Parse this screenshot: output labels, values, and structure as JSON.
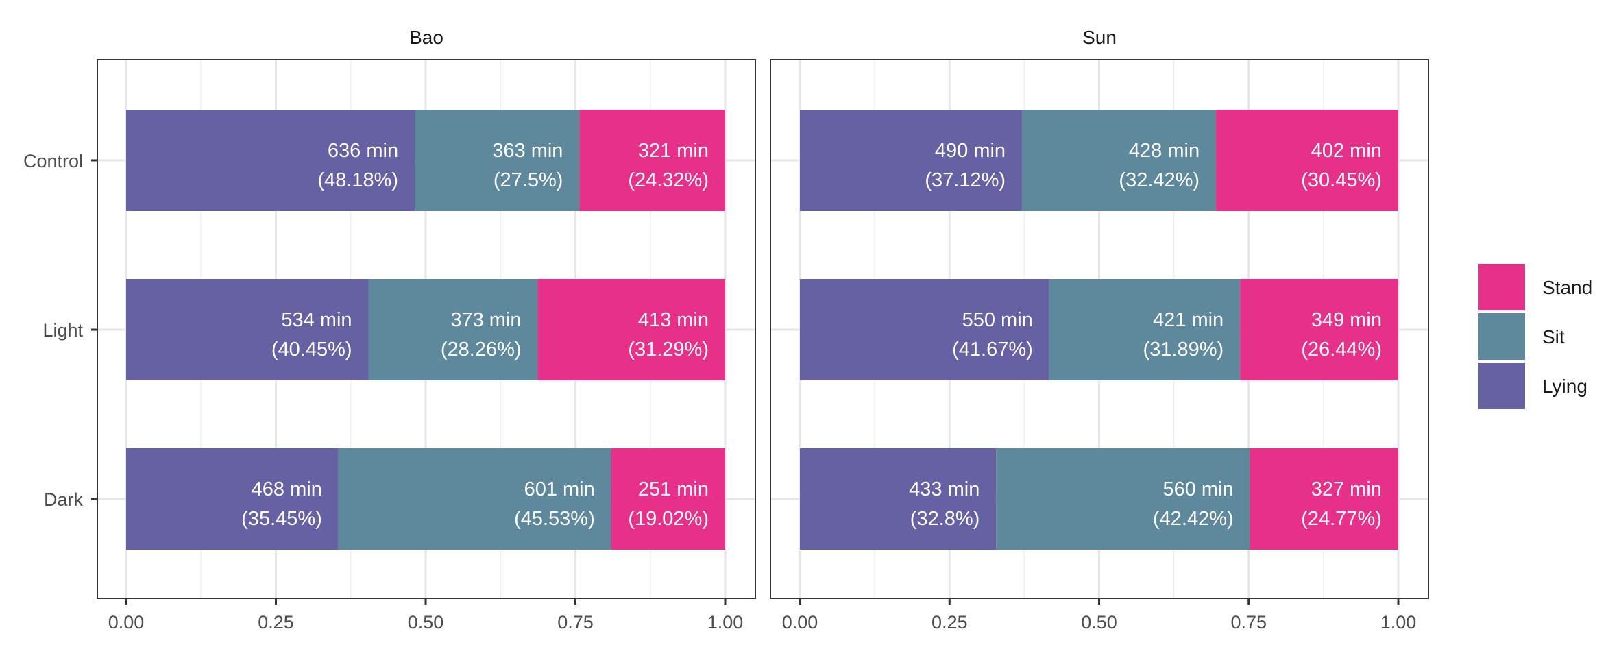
{
  "chart_data": {
    "type": "bar",
    "orientation": "horizontal",
    "stacked": true,
    "xlim": [
      0,
      1
    ],
    "x_ticks": [
      "0.00",
      "0.25",
      "0.50",
      "0.75",
      "1.00"
    ],
    "x_tick_values": [
      0,
      0.25,
      0.5,
      0.75,
      1.0
    ],
    "categories": [
      "Control",
      "Light",
      "Dark"
    ],
    "grid": true,
    "legend_position": "right",
    "legend": [
      {
        "name": "Stand",
        "color": "#E7308A"
      },
      {
        "name": "Sit",
        "color": "#5E889C"
      },
      {
        "name": "Lying",
        "color": "#6661A2"
      }
    ],
    "panels": [
      {
        "title": "Bao",
        "series": [
          {
            "name": "Lying",
            "values": [
              0.4818,
              0.4045,
              0.3545
            ],
            "labels": [
              [
                "636 min",
                "(48.18%)"
              ],
              [
                "534 min",
                "(40.45%)"
              ],
              [
                "468 min",
                "(35.45%)"
              ]
            ]
          },
          {
            "name": "Sit",
            "values": [
              0.275,
              0.2826,
              0.4553
            ],
            "labels": [
              [
                "363 min",
                "(27.5%)"
              ],
              [
                "373 min",
                "(28.26%)"
              ],
              [
                "601 min",
                "(45.53%)"
              ]
            ]
          },
          {
            "name": "Stand",
            "values": [
              0.2432,
              0.3129,
              0.1902
            ],
            "labels": [
              [
                "321 min",
                "(24.32%)"
              ],
              [
                "413 min",
                "(31.29%)"
              ],
              [
                "251 min",
                "(19.02%)"
              ]
            ]
          }
        ]
      },
      {
        "title": "Sun",
        "series": [
          {
            "name": "Lying",
            "values": [
              0.3712,
              0.4167,
              0.328
            ],
            "labels": [
              [
                "490 min",
                "(37.12%)"
              ],
              [
                "550 min",
                "(41.67%)"
              ],
              [
                "433 min",
                "(32.8%)"
              ]
            ]
          },
          {
            "name": "Sit",
            "values": [
              0.3242,
              0.3189,
              0.4242
            ],
            "labels": [
              [
                "428 min",
                "(32.42%)"
              ],
              [
                "421 min",
                "(31.89%)"
              ],
              [
                "560 min",
                "(42.42%)"
              ]
            ]
          },
          {
            "name": "Stand",
            "values": [
              0.3045,
              0.2644,
              0.2477
            ],
            "labels": [
              [
                "402 min",
                "(30.45%)"
              ],
              [
                "349 min",
                "(26.44%)"
              ],
              [
                "327 min",
                "(24.77%)"
              ]
            ]
          }
        ]
      }
    ]
  }
}
